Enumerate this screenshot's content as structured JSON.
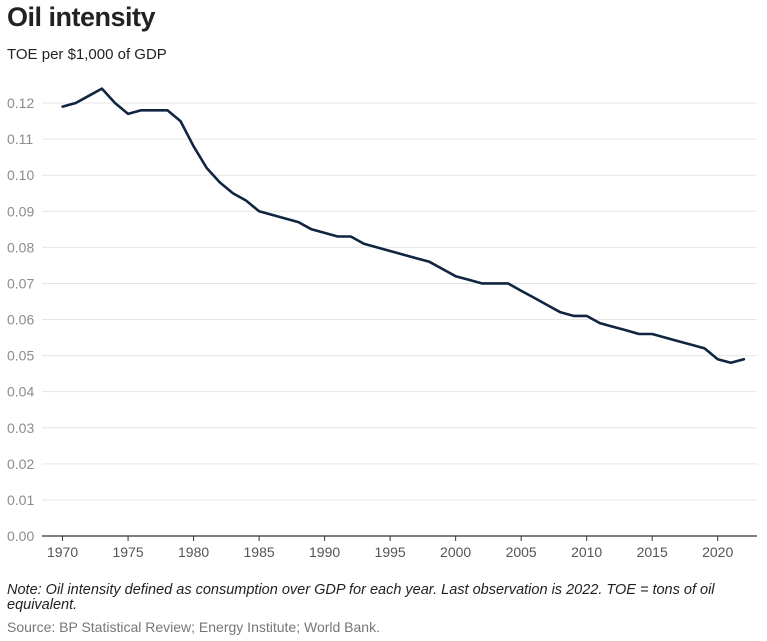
{
  "header": {
    "title": "Oil intensity",
    "subtitle": "TOE per $1,000 of GDP"
  },
  "footer": {
    "note": "Note: Oil intensity defined as consumption over GDP for each year. Last observation is 2022. TOE = tons of oil equivalent.",
    "source": "Source: BP Statistical Review; Energy Institute; World Bank."
  },
  "colors": {
    "line": "#0f2540",
    "grid": "#e6e6e6",
    "axis": "#333333"
  },
  "chart_data": {
    "type": "line",
    "title": "Oil intensity",
    "subtitle": "TOE per $1,000 of GDP",
    "xlabel": "",
    "ylabel": "TOE per $1,000 of GDP",
    "xlim": [
      1969.5,
      2023
    ],
    "ylim": [
      0,
      0.125
    ],
    "x_ticks": [
      1970,
      1975,
      1980,
      1985,
      1990,
      1995,
      2000,
      2005,
      2010,
      2015,
      2020
    ],
    "x_tick_labels": [
      "1970",
      "1975",
      "1980",
      "1985",
      "1990",
      "1995",
      "2000",
      "2005",
      "2010",
      "2015",
      "2020"
    ],
    "y_ticks": [
      0,
      0.01,
      0.02,
      0.03,
      0.04,
      0.05,
      0.06,
      0.07,
      0.08,
      0.09,
      0.1,
      0.11,
      0.12
    ],
    "y_tick_labels": [
      "0.00",
      "0.01",
      "0.02",
      "0.03",
      "0.04",
      "0.05",
      "0.06",
      "0.07",
      "0.08",
      "0.09",
      "0.10",
      "0.11",
      "0.12"
    ],
    "grid": true,
    "series": [
      {
        "name": "Oil intensity",
        "x": [
          1970,
          1971,
          1972,
          1973,
          1974,
          1975,
          1976,
          1977,
          1978,
          1979,
          1980,
          1981,
          1982,
          1983,
          1984,
          1985,
          1986,
          1987,
          1988,
          1989,
          1990,
          1991,
          1992,
          1993,
          1994,
          1995,
          1996,
          1997,
          1998,
          1999,
          2000,
          2001,
          2002,
          2003,
          2004,
          2005,
          2006,
          2007,
          2008,
          2009,
          2010,
          2011,
          2012,
          2013,
          2014,
          2015,
          2016,
          2017,
          2018,
          2019,
          2020,
          2021,
          2022
        ],
        "values": [
          0.119,
          0.12,
          0.122,
          0.124,
          0.12,
          0.117,
          0.118,
          0.118,
          0.118,
          0.115,
          0.108,
          0.102,
          0.098,
          0.095,
          0.093,
          0.09,
          0.089,
          0.088,
          0.087,
          0.085,
          0.084,
          0.083,
          0.083,
          0.081,
          0.08,
          0.079,
          0.078,
          0.077,
          0.076,
          0.074,
          0.072,
          0.071,
          0.07,
          0.07,
          0.07,
          0.068,
          0.066,
          0.064,
          0.062,
          0.061,
          0.061,
          0.059,
          0.058,
          0.057,
          0.056,
          0.056,
          0.055,
          0.054,
          0.053,
          0.052,
          0.049,
          0.048,
          0.049
        ]
      }
    ]
  }
}
